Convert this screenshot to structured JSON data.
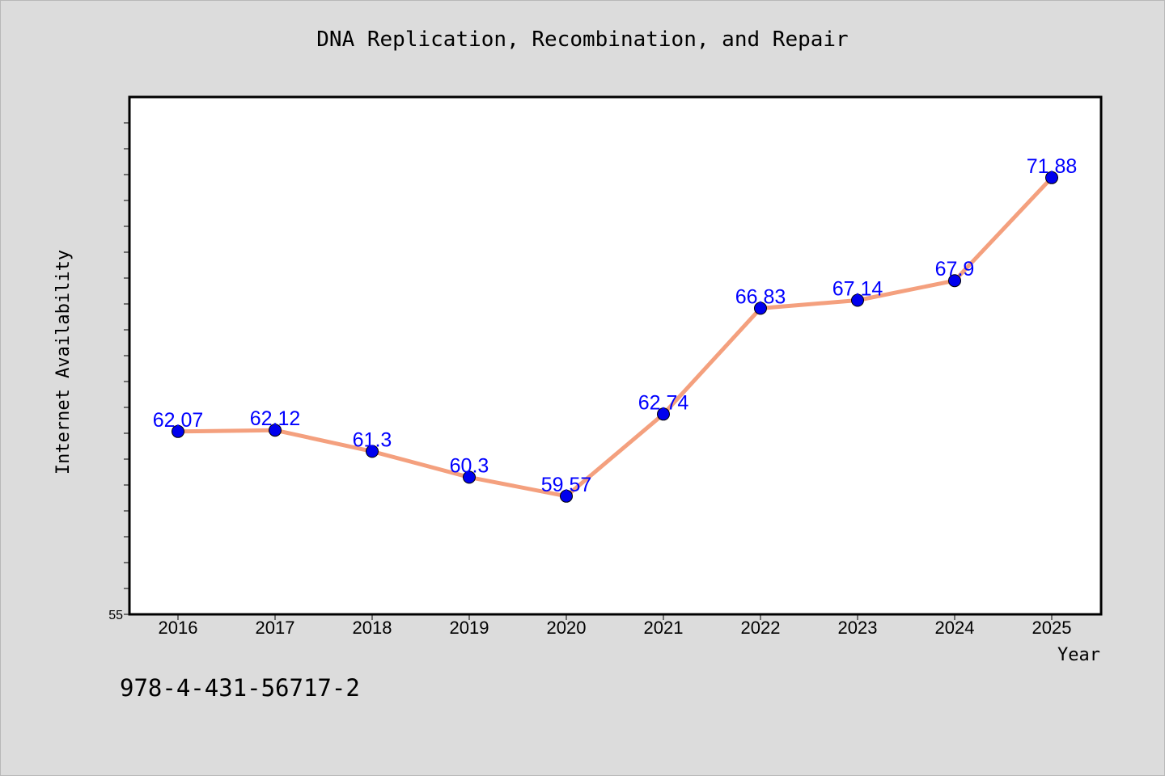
{
  "chart_data": {
    "type": "line",
    "title": "DNA Replication, Recombination, and Repair",
    "xlabel": "Year",
    "ylabel": "Internet Availability",
    "categories": [
      "2016",
      "2017",
      "2018",
      "2019",
      "2020",
      "2021",
      "2022",
      "2023",
      "2024",
      "2025"
    ],
    "series": [
      {
        "values": [
          62.07,
          62.12,
          61.3,
          60.3,
          59.57,
          62.74,
          66.83,
          67.14,
          67.9,
          71.88
        ],
        "data_labels": [
          "62.07",
          "62.12",
          "61.3",
          "60.3",
          "59.57",
          "62.74",
          "66.83",
          "67.14",
          "67.9",
          "71.88"
        ],
        "line_color": "#f4a07e",
        "marker_color": "#0000ee"
      }
    ],
    "ylim": [
      55,
      75
    ],
    "y_tick_labels": [
      "55"
    ],
    "label_color": "#0000ff",
    "grid": false,
    "legend": false,
    "background": "#dcdcdc",
    "plot_background": "#ffffff"
  },
  "footer": {
    "id_text": "978-4-431-56717-2"
  }
}
